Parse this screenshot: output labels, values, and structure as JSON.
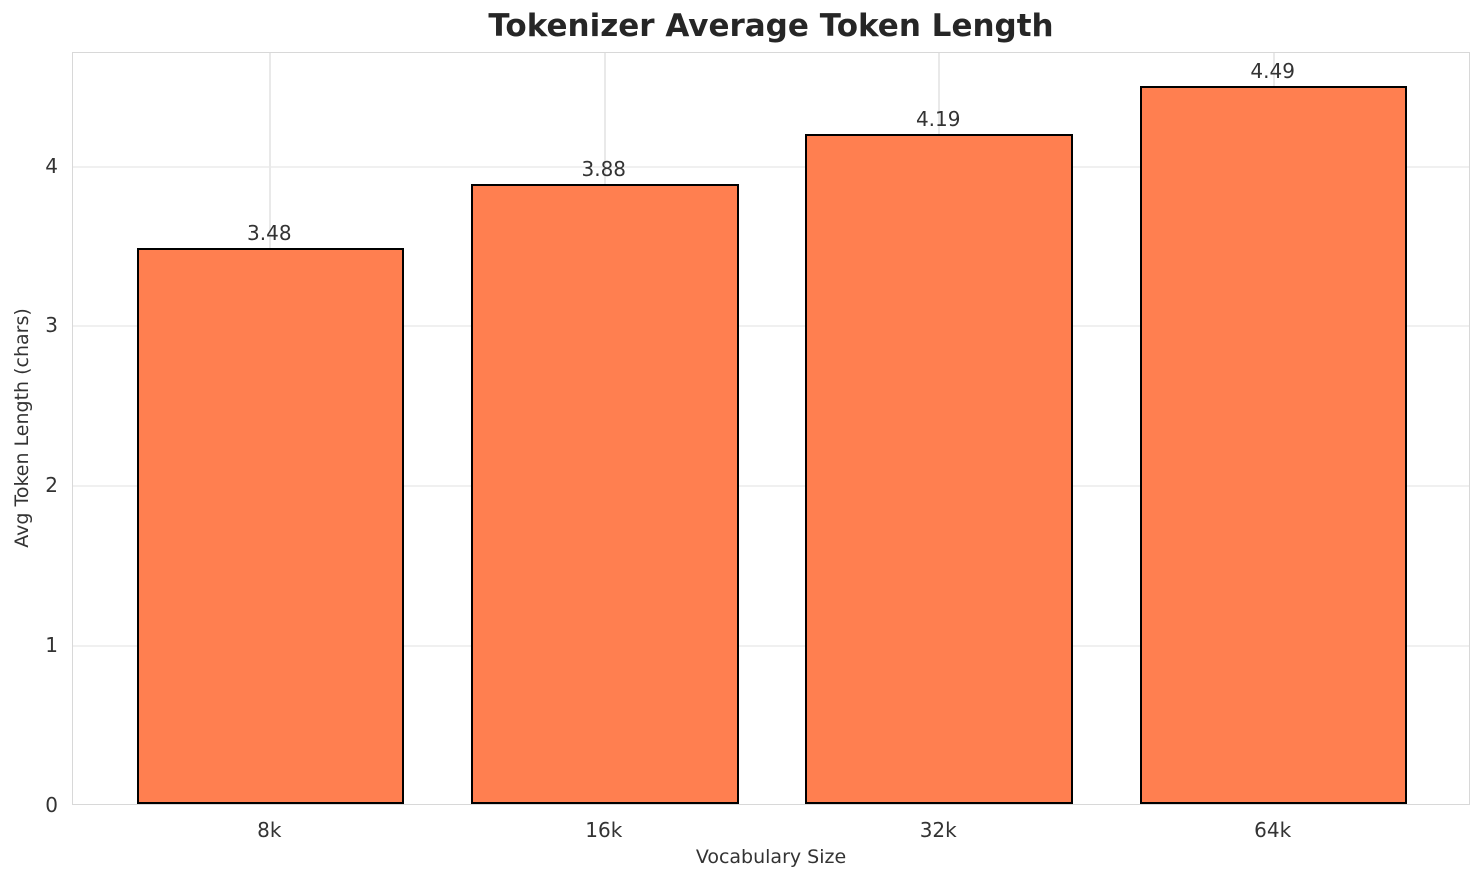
{
  "chart_data": {
    "type": "bar",
    "title": "Tokenizer Average Token Length",
    "xlabel": "Vocabulary Size",
    "ylabel": "Avg Token Length (chars)",
    "categories": [
      "8k",
      "16k",
      "32k",
      "64k"
    ],
    "values": [
      3.48,
      3.88,
      4.19,
      4.49
    ],
    "value_labels": [
      "3.48",
      "3.88",
      "4.19",
      "4.49"
    ],
    "yticks": [
      0,
      1,
      2,
      3,
      4
    ],
    "ylim": [
      0,
      4.71
    ],
    "grid": true,
    "legend": false,
    "colors": {
      "bar_fill": "#FF7F50",
      "bar_edge": "#000000",
      "background": "#FFFFFF",
      "h_grid": "#F0F0F0",
      "v_grid": "#E9E9E9",
      "spine": "#D8D8D8",
      "title_text": "#262626",
      "tick_text": "#333333"
    }
  }
}
